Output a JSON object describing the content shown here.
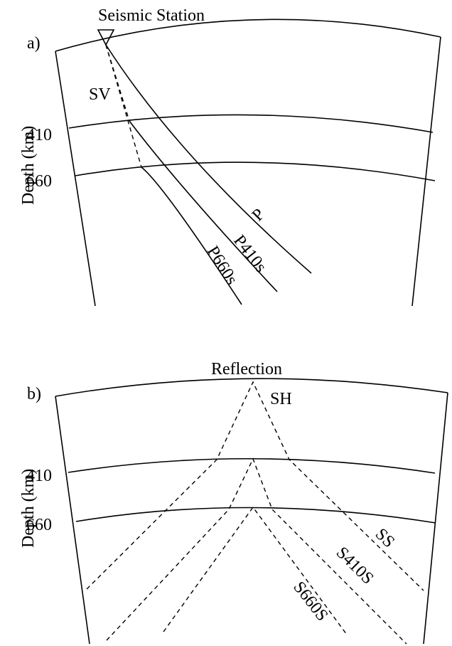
{
  "panel_a": {
    "panel_label": "a)",
    "station_label": "Seismic Station",
    "axis_label": "Depth (km)",
    "depth_410": "410",
    "depth_660": "660",
    "sv_label": "SV",
    "ray_p": "P",
    "ray_p410s": "P410s",
    "ray_p660s": "P660s"
  },
  "panel_b": {
    "panel_label": "b)",
    "reflection_label": "Reflection",
    "axis_label": "Depth (km)",
    "depth_410": "410",
    "depth_660": "660",
    "sh_label": "SH",
    "ray_ss": "SS",
    "ray_s410s": "S410S",
    "ray_s660s": "S660S"
  }
}
